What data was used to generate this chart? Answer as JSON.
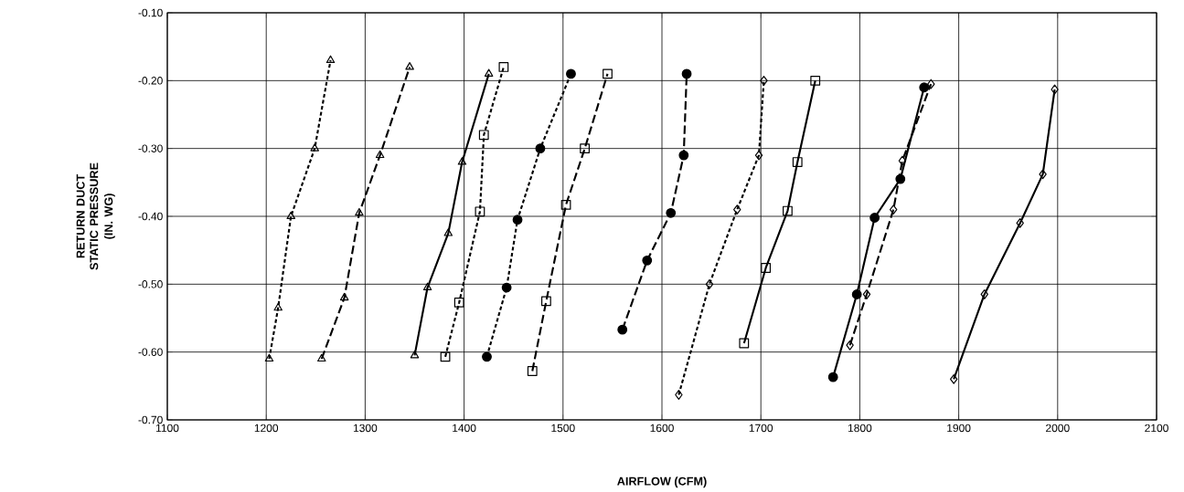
{
  "chart_data": {
    "type": "line",
    "xlabel": "AIRFLOW (CFM)",
    "ylabel": "RETURN DUCT\nSTATIC PRESSURE\n(IN. WG)",
    "xlim": [
      1100,
      2100
    ],
    "xticks": [
      1100,
      1200,
      1300,
      1400,
      1500,
      1600,
      1700,
      1800,
      1900,
      2000,
      2100
    ],
    "ylim": [
      -0.7,
      -0.1
    ],
    "yticks": [
      {
        "value": -0.7,
        "label": "-0.70"
      },
      {
        "value": -0.6,
        "label": "-0.60"
      },
      {
        "value": -0.5,
        "label": "-0.50"
      },
      {
        "value": -0.4,
        "label": "-0.40"
      },
      {
        "value": -0.3,
        "label": "-0.30"
      },
      {
        "value": -0.2,
        "label": "-0.20"
      },
      {
        "value": -0.1,
        "label": "-0.10"
      }
    ],
    "grid": true,
    "series": [
      {
        "color": "#000000",
        "marker": "triangle",
        "line_style": "dotted",
        "x": [
          1203,
          1212,
          1225,
          1249,
          1265
        ],
        "values": [
          -0.61,
          -0.535,
          -0.4,
          -0.3,
          -0.17
        ]
      },
      {
        "color": "#000000",
        "marker": "triangle",
        "line_style": "dashed",
        "x": [
          1256,
          1279,
          1294,
          1315,
          1345
        ],
        "values": [
          -0.61,
          -0.52,
          -0.395,
          -0.31,
          -0.18
        ]
      },
      {
        "color": "#000000",
        "marker": "triangle",
        "line_style": "solid",
        "x": [
          1350,
          1363,
          1384,
          1398,
          1425
        ],
        "values": [
          -0.605,
          -0.505,
          -0.425,
          -0.32,
          -0.19
        ]
      },
      {
        "color": "#000000",
        "marker": "square",
        "line_style": "dotted",
        "x": [
          1381,
          1395,
          1416,
          1420,
          1440
        ],
        "values": [
          -0.607,
          -0.527,
          -0.393,
          -0.28,
          -0.18
        ]
      },
      {
        "color": "#000000",
        "marker": "circle",
        "line_style": "dotted",
        "x": [
          1423,
          1443,
          1454,
          1477,
          1508
        ],
        "values": [
          -0.607,
          -0.505,
          -0.405,
          -0.3,
          -0.19
        ]
      },
      {
        "color": "#000000",
        "marker": "square",
        "line_style": "dashed",
        "x": [
          1469,
          1483,
          1503,
          1522,
          1545
        ],
        "values": [
          -0.628,
          -0.525,
          -0.383,
          -0.3,
          -0.19
        ]
      },
      {
        "color": "#000000",
        "marker": "circle",
        "line_style": "dashed",
        "x": [
          1560,
          1585,
          1609,
          1622,
          1625
        ],
        "values": [
          -0.567,
          -0.465,
          -0.395,
          -0.31,
          -0.19
        ]
      },
      {
        "color": "#000000",
        "marker": "diamond",
        "line_style": "dotted",
        "x": [
          1617,
          1648,
          1676,
          1698,
          1703
        ],
        "values": [
          -0.663,
          -0.5,
          -0.39,
          -0.31,
          -0.2
        ]
      },
      {
        "color": "#000000",
        "marker": "square",
        "line_style": "solid",
        "x": [
          1683,
          1705,
          1727,
          1737,
          1755
        ],
        "values": [
          -0.587,
          -0.476,
          -0.392,
          -0.32,
          -0.2
        ]
      },
      {
        "color": "#000000",
        "marker": "circle",
        "line_style": "solid",
        "x": [
          1773,
          1797,
          1815,
          1841,
          1865
        ],
        "values": [
          -0.637,
          -0.515,
          -0.402,
          -0.345,
          -0.21
        ]
      },
      {
        "color": "#000000",
        "marker": "diamond",
        "line_style": "dashed",
        "x": [
          1790,
          1807,
          1834,
          1843,
          1872
        ],
        "values": [
          -0.59,
          -0.515,
          -0.39,
          -0.318,
          -0.205
        ]
      },
      {
        "color": "#000000",
        "marker": "diamond",
        "line_style": "solid",
        "x": [
          1895,
          1926,
          1962,
          1985,
          1997
        ],
        "values": [
          -0.64,
          -0.515,
          -0.41,
          -0.338,
          -0.213
        ]
      }
    ]
  }
}
